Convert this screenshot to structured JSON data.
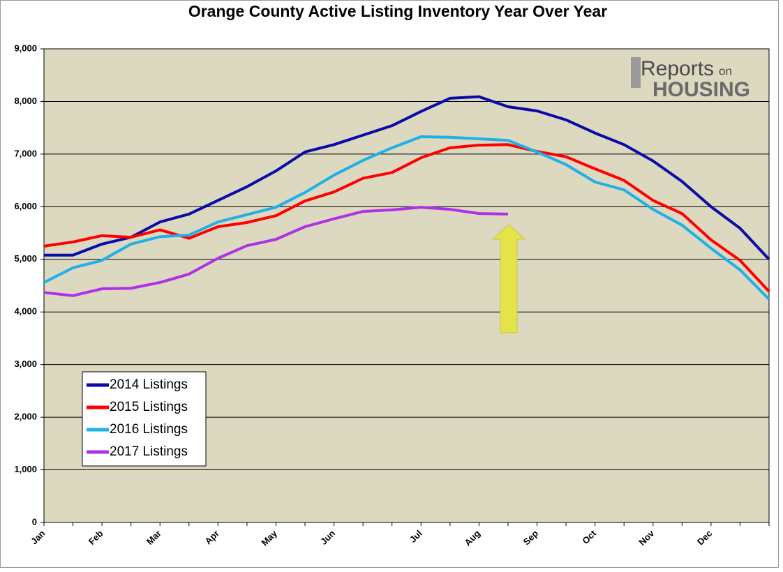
{
  "chart_data": {
    "type": "line",
    "title": "Orange County Active Listing Inventory Year Over Year",
    "categories": [
      "Jan",
      null,
      "Feb",
      null,
      "Mar",
      null,
      "Apr",
      null,
      "May",
      null,
      "Jun",
      null,
      null,
      "Jul",
      null,
      "Aug",
      null,
      "Sep",
      null,
      "Oct",
      null,
      "Nov",
      null,
      "Dec",
      null,
      null
    ],
    "series": [
      {
        "name": "2014 Listings",
        "color": "#0a0aa8",
        "values": [
          5080,
          5080,
          5290,
          5420,
          5710,
          5860,
          6120,
          6380,
          6680,
          7040,
          7180,
          7360,
          7540,
          7810,
          8060,
          8090,
          7900,
          7820,
          7650,
          7400,
          7180,
          6870,
          6480,
          6000,
          5590,
          5000
        ]
      },
      {
        "name": "2015 Listings",
        "color": "#ff0000",
        "values": [
          5250,
          5330,
          5450,
          5420,
          5560,
          5400,
          5620,
          5700,
          5830,
          6110,
          6280,
          6540,
          6650,
          6930,
          7120,
          7170,
          7180,
          7050,
          6950,
          6720,
          6500,
          6120,
          5870,
          5370,
          4980,
          4390
        ]
      },
      {
        "name": "2016 Listings",
        "color": "#1fb0e8",
        "values": [
          4560,
          4840,
          4980,
          5290,
          5430,
          5460,
          5710,
          5850,
          5990,
          6270,
          6600,
          6880,
          7120,
          7330,
          7320,
          7290,
          7260,
          7040,
          6800,
          6470,
          6320,
          5950,
          5650,
          5210,
          4800,
          4240
        ]
      },
      {
        "name": "2017 Listings",
        "color": "#b030e8",
        "values": [
          4370,
          4310,
          4440,
          4450,
          4560,
          4720,
          5020,
          5260,
          5380,
          5620,
          5770,
          5910,
          5940,
          5990,
          5950,
          5870,
          5860,
          null,
          null,
          null,
          null,
          null,
          null,
          null,
          null,
          null
        ]
      }
    ],
    "ylim": [
      0,
      9000
    ],
    "yticks": [
      0,
      {
        "value": 1000,
        "label": "1,000"
      },
      {
        "value": 2000,
        "label": "2,000"
      },
      {
        "value": 3000,
        "label": "3,000"
      },
      {
        "value": 4000,
        "label": "4,000"
      },
      {
        "value": 5000,
        "label": "5,000"
      },
      {
        "value": 6000,
        "label": "6,000"
      },
      {
        "value": 7000,
        "label": "7,000"
      },
      {
        "value": 8000,
        "label": "8,000"
      },
      {
        "value": 9000,
        "label": "9,000"
      }
    ],
    "grid": true,
    "legend": "lower left",
    "logo_text": [
      "Reports",
      "on",
      "HOUSING"
    ]
  }
}
